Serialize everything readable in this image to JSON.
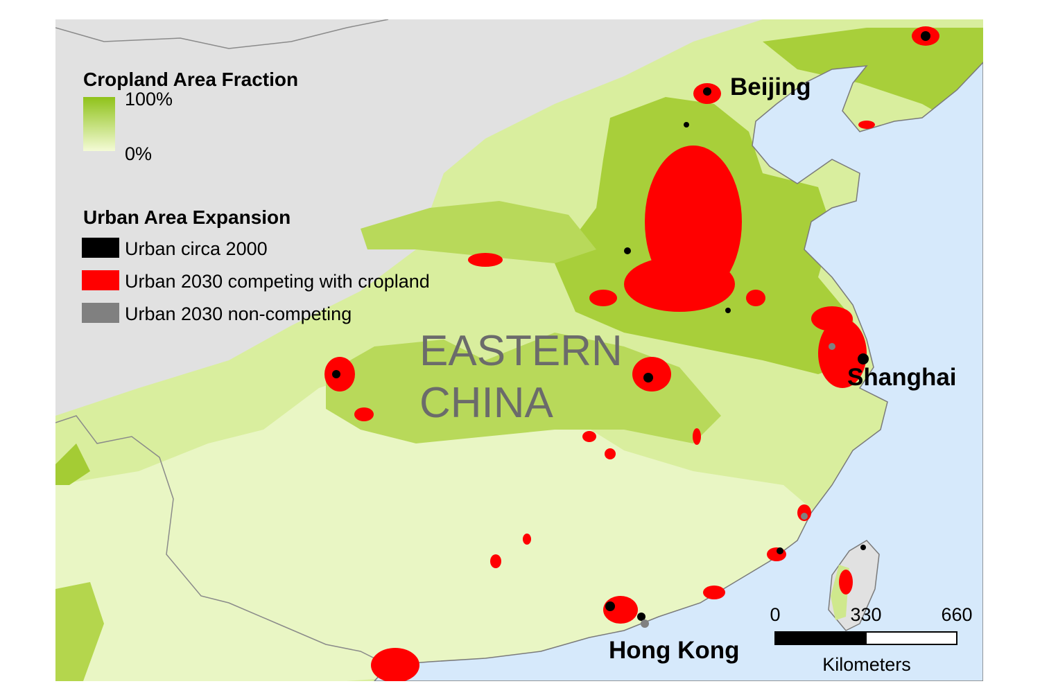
{
  "legend": {
    "cropland": {
      "title": "Cropland Area Fraction",
      "max_label": "100%",
      "min_label": "0%"
    },
    "urban": {
      "title": "Urban Area Expansion",
      "items": [
        {
          "label": "Urban circa 2000",
          "color": "#000000"
        },
        {
          "label": "Urban 2030 competing with cropland",
          "color": "#ff0000"
        },
        {
          "label": "Urban 2030 non-competing",
          "color": "#808080"
        }
      ]
    }
  },
  "labels": {
    "cities": [
      "Beijing",
      "Shanghai",
      "Hong Kong"
    ],
    "region": [
      "EASTERN",
      "CHINA"
    ]
  },
  "scale_bar": {
    "ticks": [
      0,
      330,
      660
    ],
    "unit": "Kilometers"
  }
}
